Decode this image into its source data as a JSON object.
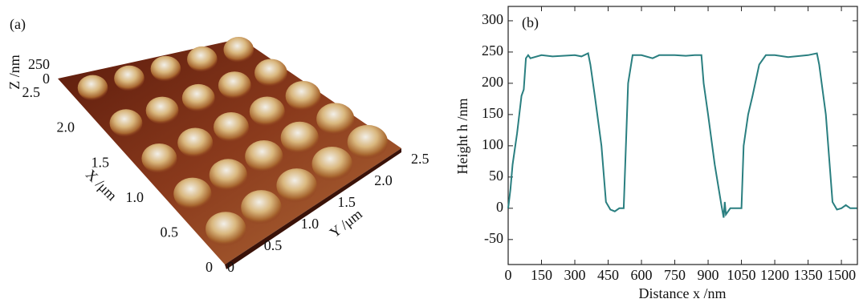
{
  "chart_data": [
    {
      "type": "surface",
      "label": "(a)",
      "xlabel": "X /μm",
      "ylabel": "Y /μm",
      "zlabel": "Z /nm",
      "xlim": [
        0,
        2.5
      ],
      "xticks": [
        0,
        0.5,
        {
          "value": 1,
          "label": "1.0"
        },
        1.5,
        {
          "value": 2,
          "label": "2.0"
        },
        2.5
      ],
      "ylim": [
        0,
        2.5
      ],
      "yticks": [
        0,
        0.5,
        {
          "value": 1,
          "label": "1.0"
        },
        1.5,
        {
          "value": 2,
          "label": "2.0"
        },
        2.5
      ],
      "zlim": [
        0,
        250
      ],
      "zticks": [
        0,
        250
      ]
    },
    {
      "type": "line",
      "label": "(b)",
      "xlabel": "Distance x /nm",
      "ylabel": "Height h /nm",
      "color": "#2a7f80",
      "xlim": [
        0,
        1572
      ],
      "ylim": [
        -90,
        323
      ],
      "xticks": [
        0,
        150,
        300,
        450,
        600,
        750,
        900,
        1050,
        1200,
        1350,
        1500
      ],
      "yticks": [
        -50,
        0,
        50,
        100,
        150,
        200,
        250,
        300
      ],
      "x": [
        0,
        10,
        20,
        40,
        60,
        65,
        70,
        80,
        90,
        100,
        150,
        200,
        300,
        330,
        360,
        370,
        390,
        420,
        440,
        460,
        480,
        500,
        520,
        540,
        560,
        600,
        650,
        680,
        750,
        800,
        840,
        870,
        880,
        900,
        930,
        960,
        970,
        975,
        980,
        1000,
        1050,
        1060,
        1080,
        1100,
        1130,
        1160,
        1200,
        1260,
        1350,
        1390,
        1400,
        1430,
        1460,
        1480,
        1500,
        1520,
        1540,
        1570
      ],
      "values": [
        0,
        30,
        70,
        120,
        180,
        185,
        190,
        240,
        245,
        240,
        245,
        243,
        245,
        243,
        248,
        230,
        180,
        100,
        10,
        -2,
        -5,
        0,
        0,
        200,
        245,
        245,
        240,
        245,
        245,
        244,
        245,
        245,
        200,
        150,
        70,
        5,
        -15,
        10,
        -10,
        0,
        0,
        100,
        150,
        180,
        230,
        245,
        245,
        242,
        245,
        248,
        230,
        150,
        10,
        -2,
        0,
        5,
        0,
        0
      ]
    }
  ]
}
